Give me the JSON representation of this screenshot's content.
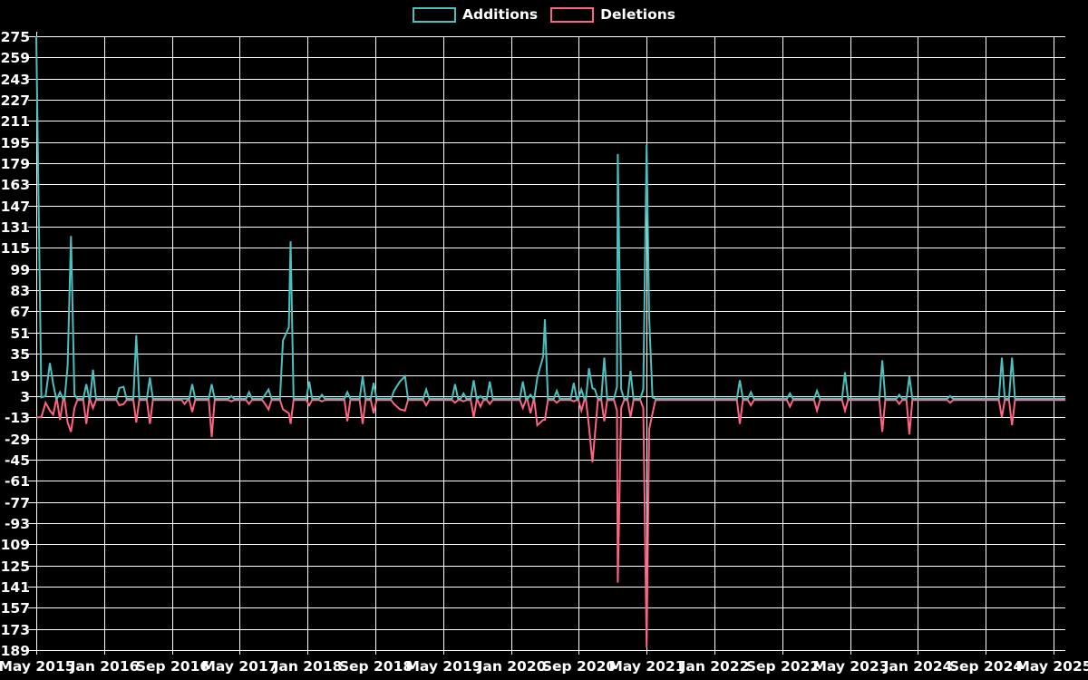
{
  "page": {
    "background_color": "#000000",
    "title": ""
  },
  "legend": {
    "items": [
      {
        "label": "Additions",
        "color": "#4bc0c0"
      },
      {
        "label": "Deletions",
        "color": "#ff6384"
      }
    ]
  },
  "chart_data": {
    "type": "line",
    "title": "",
    "xlabel": "",
    "ylabel": "",
    "grid": true,
    "grid_color": "#ffffff",
    "background_color": "#000000",
    "legend_position": "top-center",
    "x_axis": {
      "unit": "months since May 2015",
      "tick_step_months": 8,
      "label_span_months": 120,
      "range": [
        0,
        121.4
      ],
      "tick_labels": [
        "May 2015",
        "Jan 2016",
        "Sep 2016",
        "May 2017",
        "Jan 2018",
        "Sep 2018",
        "May 2019",
        "Jan 2020",
        "Sep 2020",
        "May 2021",
        "Jan 2022",
        "Sep 2022",
        "May 2023",
        "Jan 2024",
        "Sep 2024",
        "May 2025"
      ]
    },
    "y_axis": {
      "min": -189,
      "max": 275,
      "step": 16,
      "tick_labels": [
        "275",
        "259",
        "243",
        "227",
        "211",
        "195",
        "179",
        "163",
        "147",
        "131",
        "115",
        "99",
        "83",
        "67",
        "51",
        "35",
        "19",
        "3",
        "-13",
        "-29",
        "-45",
        "-61",
        "-77",
        "-93",
        "-109",
        "-125",
        "-141",
        "-157",
        "-173",
        "-189"
      ]
    },
    "events_format": "[month_offset_from_May_2015, additions, deletions]; both series sit at baseline (~+1 / ~0) between events",
    "events": [
      [
        0.0,
        275,
        -13
      ],
      [
        0.6,
        2,
        -13
      ],
      [
        1.1,
        3,
        -2
      ],
      [
        1.6,
        28,
        -8
      ],
      [
        2.0,
        12,
        -11
      ],
      [
        2.8,
        6,
        -15
      ],
      [
        3.7,
        26,
        -17
      ],
      [
        4.1,
        124,
        -24
      ],
      [
        4.5,
        4,
        -6
      ],
      [
        5.9,
        12,
        -18
      ],
      [
        6.7,
        23,
        -6
      ],
      [
        9.8,
        9,
        -4
      ],
      [
        10.3,
        10,
        -3
      ],
      [
        11.8,
        49,
        -17
      ],
      [
        13.4,
        17,
        -18
      ],
      [
        17.5,
        1,
        -3
      ],
      [
        18.4,
        12,
        -9
      ],
      [
        20.7,
        12,
        -28
      ],
      [
        23.0,
        3,
        -1
      ],
      [
        25.1,
        6,
        -3
      ],
      [
        27.0,
        4,
        -3
      ],
      [
        27.4,
        8,
        -7
      ],
      [
        29.1,
        45,
        -7
      ],
      [
        29.8,
        55,
        -10
      ],
      [
        30.0,
        120,
        -18
      ],
      [
        32.2,
        14,
        -4
      ],
      [
        33.7,
        4,
        -1
      ],
      [
        36.7,
        6,
        -16
      ],
      [
        38.5,
        18,
        -18
      ],
      [
        39.8,
        13,
        -10
      ],
      [
        42.2,
        7,
        -3
      ],
      [
        42.9,
        14,
        -7
      ],
      [
        43.5,
        18,
        -8
      ],
      [
        46.0,
        8,
        -4
      ],
      [
        49.4,
        12,
        -2
      ],
      [
        50.4,
        5,
        -1
      ],
      [
        51.6,
        15,
        -13
      ],
      [
        52.4,
        3,
        -5
      ],
      [
        53.5,
        14,
        -3
      ],
      [
        57.4,
        14,
        -6
      ],
      [
        58.3,
        4,
        -10
      ],
      [
        59.1,
        17,
        -19
      ],
      [
        59.8,
        33,
        -15
      ],
      [
        60.0,
        61,
        -15
      ],
      [
        61.4,
        7,
        -2
      ],
      [
        63.4,
        13,
        -1
      ],
      [
        64.3,
        8,
        -8
      ],
      [
        65.2,
        24,
        -20
      ],
      [
        65.6,
        9,
        -47
      ],
      [
        65.9,
        8,
        -26
      ],
      [
        67.0,
        32,
        -16
      ],
      [
        68.5,
        10,
        -8
      ],
      [
        68.6,
        186,
        -138
      ],
      [
        69.0,
        8,
        -6
      ],
      [
        70.1,
        22,
        -13
      ],
      [
        71.6,
        8,
        -6
      ],
      [
        72.0,
        193,
        -187
      ],
      [
        72.3,
        62,
        -22
      ],
      [
        72.7,
        2,
        -10
      ],
      [
        83.0,
        15,
        -18
      ],
      [
        84.3,
        6,
        -4
      ],
      [
        88.9,
        5,
        -5
      ],
      [
        92.1,
        7,
        -8
      ],
      [
        95.4,
        21,
        -8
      ],
      [
        99.8,
        30,
        -24
      ],
      [
        101.8,
        4,
        -3
      ],
      [
        103.0,
        18,
        -26
      ],
      [
        107.8,
        3,
        -2
      ],
      [
        113.9,
        32,
        -13
      ],
      [
        115.1,
        32,
        -19
      ]
    ],
    "series": [
      {
        "name": "Additions",
        "color": "#4bc0c0",
        "baseline": 1,
        "value_index": 1
      },
      {
        "name": "Deletions",
        "color": "#ff6384",
        "baseline": 0,
        "value_index": 2
      }
    ]
  }
}
